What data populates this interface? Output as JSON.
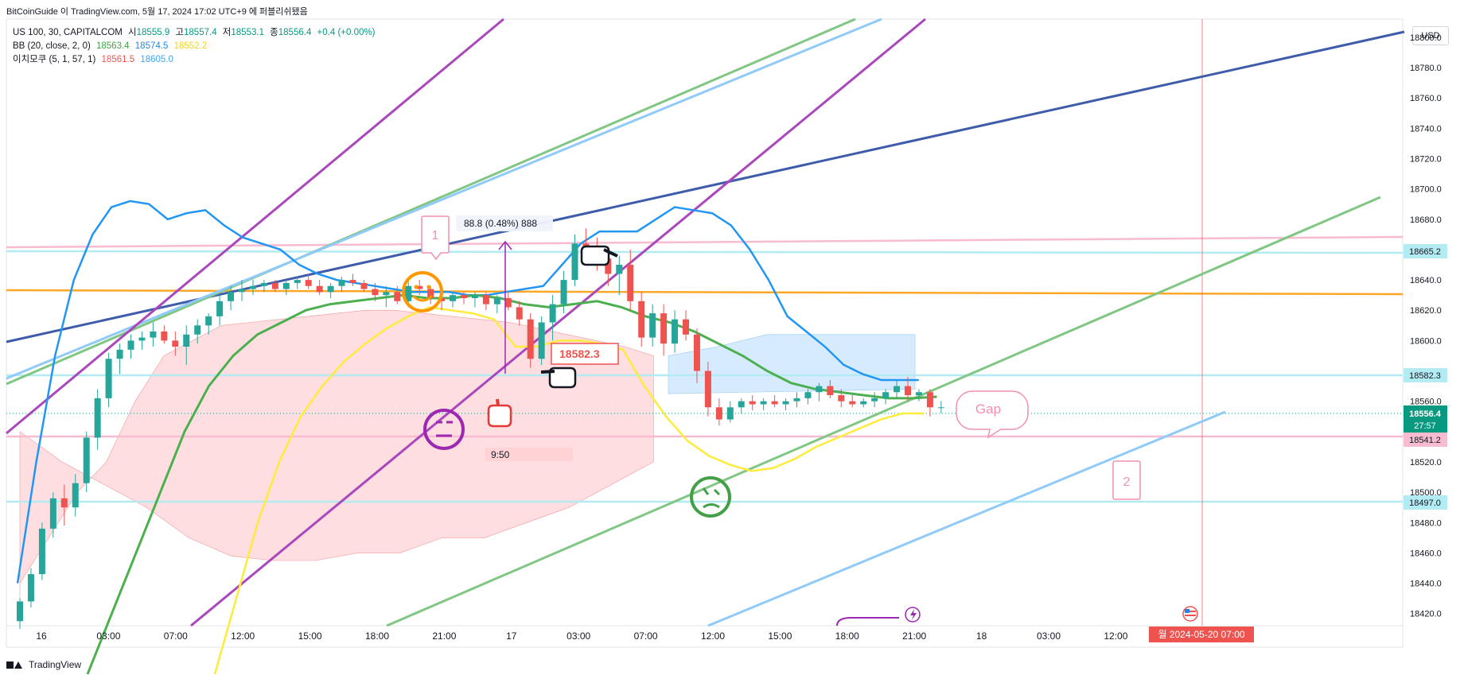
{
  "header": {
    "attribution": "BitCoinGuide 이 TradingView.com, 5월 17, 2024 17:02 UTC+9 에 퍼블리쉬됐음"
  },
  "legend": {
    "symbol": "US 100, 30, CAPITALCOM",
    "o_label": "시",
    "o": "18555.9",
    "h_label": "고",
    "h": "18557.4",
    "l_label": "저",
    "l": "18553.1",
    "c_label": "종",
    "c": "18556.4",
    "change": "+0.4 (+0.00%)",
    "bb_label": "BB (20, close, 2, 0)",
    "bb_mid": "18563.4",
    "bb_upper": "18574.5",
    "bb_lower": "18552.2",
    "ichimoku_label": "이치모쿠 (5, 1, 57, 1)",
    "ich_a": "18561.5",
    "ich_b": "18605.0"
  },
  "currency": "USD",
  "footer": {
    "brand": "TradingView"
  },
  "colors": {
    "up": "#26a69a",
    "down": "#ef5350",
    "bb_upper": "#2196f3",
    "bb_mid": "#4caf50",
    "bb_lower": "#ffeb3b",
    "orange": "#ff9800",
    "purple": "#ab47bc",
    "navy": "#3f5cab",
    "cloud_bear": "#ffcdd2",
    "cloud_bull": "#bbdefb",
    "teal_line": "#b2ebf2",
    "pink_line": "#f8bbd0"
  },
  "chart_data": {
    "type": "candlestick",
    "symbol": "US 100, 30, CAPITALCOM",
    "ylim": [
      18412,
      18812
    ],
    "y_ticks": [
      18420,
      18440,
      18460,
      18480,
      18500,
      18520,
      18560,
      18580,
      18600,
      18620,
      18640,
      18660,
      18680,
      18700,
      18720,
      18740,
      18760,
      18780,
      18800
    ],
    "x_ticks": [
      "16",
      "03:00",
      "07:00",
      "12:00",
      "15:00",
      "18:00",
      "21:00",
      "17",
      "03:00",
      "07:00",
      "12:00",
      "15:00",
      "18:00",
      "21:00",
      "18",
      "03:00",
      "12:00",
      "15:00"
    ],
    "candles": [
      [
        18415,
        18430,
        18410,
        18428
      ],
      [
        18428,
        18450,
        18424,
        18446
      ],
      [
        18446,
        18480,
        18442,
        18476
      ],
      [
        18476,
        18500,
        18470,
        18496
      ],
      [
        18496,
        18505,
        18478,
        18490
      ],
      [
        18490,
        18512,
        18484,
        18506
      ],
      [
        18506,
        18540,
        18500,
        18536
      ],
      [
        18536,
        18568,
        18528,
        18562
      ],
      [
        18562,
        18592,
        18556,
        18588
      ],
      [
        18588,
        18598,
        18578,
        18594
      ],
      [
        18594,
        18604,
        18588,
        18600
      ],
      [
        18600,
        18606,
        18594,
        18602
      ],
      [
        18602,
        18612,
        18596,
        18606
      ],
      [
        18606,
        18610,
        18598,
        18600
      ],
      [
        18600,
        18606,
        18590,
        18596
      ],
      [
        18596,
        18610,
        18584,
        18604
      ],
      [
        18604,
        18614,
        18598,
        18610
      ],
      [
        18610,
        18618,
        18604,
        18616
      ],
      [
        18616,
        18630,
        18610,
        18626
      ],
      [
        18626,
        18636,
        18620,
        18632
      ],
      [
        18632,
        18640,
        18626,
        18634
      ],
      [
        18634,
        18640,
        18630,
        18636
      ],
      [
        18636,
        18640,
        18632,
        18638
      ],
      [
        18638,
        18640,
        18632,
        18634
      ],
      [
        18634,
        18640,
        18630,
        18638
      ],
      [
        18638,
        18642,
        18634,
        18640
      ],
      [
        18640,
        18644,
        18634,
        18636
      ],
      [
        18636,
        18640,
        18630,
        18632
      ],
      [
        18632,
        18638,
        18628,
        18636
      ],
      [
        18636,
        18642,
        18632,
        18640
      ],
      [
        18640,
        18644,
        18636,
        18638
      ],
      [
        18638,
        18640,
        18632,
        18634
      ],
      [
        18634,
        18638,
        18626,
        18630
      ],
      [
        18630,
        18636,
        18622,
        18632
      ],
      [
        18632,
        18636,
        18624,
        18626
      ],
      [
        18626,
        18640,
        18622,
        18636
      ],
      [
        18636,
        18640,
        18630,
        18634
      ],
      [
        18634,
        18636,
        18624,
        18628
      ],
      [
        18628,
        18632,
        18620,
        18626
      ],
      [
        18626,
        18632,
        18622,
        18630
      ],
      [
        18630,
        18632,
        18624,
        18628
      ],
      [
        18628,
        18632,
        18622,
        18630
      ],
      [
        18630,
        18632,
        18620,
        18624
      ],
      [
        18624,
        18630,
        18618,
        18628
      ],
      [
        18628,
        18632,
        18620,
        18622
      ],
      [
        18622,
        18626,
        18610,
        18614
      ],
      [
        18614,
        18618,
        18582,
        18588
      ],
      [
        18588,
        18616,
        18584,
        18612
      ],
      [
        18612,
        18630,
        18600,
        18624
      ],
      [
        18624,
        18646,
        18618,
        18640
      ],
      [
        18640,
        18670,
        18636,
        18664
      ],
      [
        18664,
        18674,
        18654,
        18660
      ],
      [
        18660,
        18668,
        18646,
        18654
      ],
      [
        18654,
        18660,
        18636,
        18644
      ],
      [
        18644,
        18656,
        18630,
        18650
      ],
      [
        18650,
        18660,
        18620,
        18626
      ],
      [
        18626,
        18632,
        18596,
        18602
      ],
      [
        18602,
        18624,
        18596,
        18618
      ],
      [
        18618,
        18624,
        18590,
        18598
      ],
      [
        18598,
        18620,
        18592,
        18614
      ],
      [
        18614,
        18620,
        18600,
        18604
      ],
      [
        18604,
        18608,
        18572,
        18580
      ],
      [
        18580,
        18586,
        18550,
        18556
      ],
      [
        18556,
        18562,
        18544,
        18548
      ],
      [
        18548,
        18560,
        18546,
        18556
      ],
      [
        18556,
        18562,
        18552,
        18560
      ],
      [
        18560,
        18564,
        18554,
        18558
      ],
      [
        18558,
        18562,
        18554,
        18560
      ],
      [
        18560,
        18564,
        18556,
        18558
      ],
      [
        18558,
        18562,
        18554,
        18560
      ],
      [
        18560,
        18566,
        18556,
        18562
      ],
      [
        18562,
        18568,
        18558,
        18566
      ],
      [
        18566,
        18572,
        18560,
        18570
      ],
      [
        18570,
        18574,
        18562,
        18564
      ],
      [
        18564,
        18568,
        18556,
        18560
      ],
      [
        18560,
        18564,
        18556,
        18558
      ],
      [
        18558,
        18562,
        18556,
        18560
      ],
      [
        18560,
        18566,
        18556,
        18562
      ],
      [
        18562,
        18568,
        18558,
        18566
      ],
      [
        18566,
        18574,
        18562,
        18570
      ],
      [
        18570,
        18576,
        18560,
        18564
      ],
      [
        18564,
        18568,
        18560,
        18566
      ],
      [
        18566,
        18568,
        18550,
        18556
      ],
      [
        18556,
        18560,
        18552,
        18556
      ]
    ],
    "bb_upper": [
      18440,
      18520,
      18590,
      18640,
      18670,
      18688,
      18692,
      18690,
      18680,
      18684,
      18686,
      18676,
      18668,
      18664,
      18660,
      18650,
      18644,
      18640,
      18638,
      18636,
      18634,
      18632,
      18632,
      18632,
      18630,
      18630,
      18632,
      18634,
      18636,
      18650,
      18664,
      18672,
      18672,
      18672,
      18680,
      18688,
      18686,
      18684,
      18676,
      18660,
      18640,
      18616,
      18606,
      18596,
      18584,
      18578,
      18574,
      18574,
      18574
    ],
    "bb_mid": [
      18380,
      18420,
      18460,
      18500,
      18540,
      18570,
      18590,
      18604,
      18612,
      18620,
      18624,
      18626,
      18628,
      18630,
      18628,
      18628,
      18630,
      18628,
      18624,
      18622,
      18624,
      18626,
      18622,
      18616,
      18612,
      18606,
      18598,
      18590,
      18580,
      18572,
      18568,
      18566,
      18564,
      18562,
      18562,
      18563
    ],
    "bb_lower": [
      18380,
      18430,
      18480,
      18520,
      18550,
      18570,
      18586,
      18598,
      18608,
      18616,
      18622,
      18620,
      18618,
      18614,
      18596,
      18596,
      18600,
      18600,
      18598,
      18594,
      18570,
      18550,
      18534,
      18524,
      18518,
      18514,
      18516,
      18522,
      18530,
      18536,
      18542,
      18548,
      18552,
      18552
    ],
    "ichimoku_cloud_bear": [
      18440,
      18470,
      18500,
      18520,
      18560,
      18590,
      18600,
      18610,
      18612,
      18614,
      18616,
      18618,
      18620,
      18620,
      18618,
      18616,
      18614,
      18612,
      18608,
      18604,
      18600,
      18596,
      18590
    ],
    "ichimoku_cloud_bull": [
      18590,
      18596,
      18604,
      18604,
      18604,
      18604
    ],
    "annotations": {
      "measure": "88.8 (0.48%) 888",
      "price_label": "18582.3",
      "time_label": "9:50",
      "gap_label": "Gap",
      "label_1": "1",
      "label_2": "2"
    },
    "price_axis_labels": {
      "level_1": "18665.2",
      "level_2": "18582.3",
      "last_price": "18556.4",
      "countdown": "27:57",
      "level_3": "18541.2",
      "level_4": "18497.0",
      "date_marker": "월 2024-05-20   07:00"
    }
  }
}
